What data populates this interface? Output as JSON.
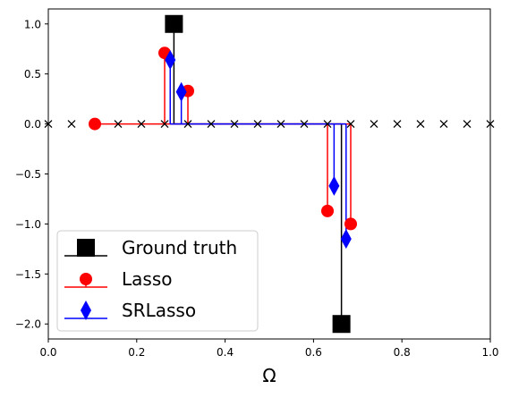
{
  "chart_data": {
    "type": "scatter",
    "xlabel": "Ω",
    "ylabel": "",
    "xlim": [
      0,
      1
    ],
    "ylim": [
      -2.15,
      1.15
    ],
    "xticks": [
      "0.0",
      "0.2",
      "0.4",
      "0.6",
      "0.8",
      "1.0"
    ],
    "xtick_values": [
      0,
      0.2,
      0.4,
      0.6,
      0.8,
      1.0
    ],
    "yticks": [
      "1.0",
      "0.5",
      "0.0",
      "−0.5",
      "−1.0",
      "−1.5",
      "−2.0"
    ],
    "ytick_values": [
      1.0,
      0.5,
      0.0,
      -0.5,
      -1.0,
      -1.5,
      -2.0
    ],
    "grid": false,
    "legend_position": "lower-left",
    "grid_markers": {
      "marker": "x",
      "color": "#000000",
      "x": [
        0.0,
        0.0526,
        0.1053,
        0.1579,
        0.2105,
        0.2632,
        0.3158,
        0.3684,
        0.4211,
        0.4737,
        0.5263,
        0.5789,
        0.6316,
        0.6842,
        0.7368,
        0.7895,
        0.8421,
        0.8947,
        0.9474,
        1.0
      ],
      "y": 0.0
    },
    "series": [
      {
        "name": "Ground truth",
        "marker": "square",
        "color": "#000000",
        "x": [
          0.2842,
          0.6632
        ],
        "y": [
          1.0,
          -2.0
        ]
      },
      {
        "name": "Lasso",
        "marker": "circle",
        "color": "#ff0000",
        "x": [
          0.1053,
          0.2632,
          0.3158,
          0.6316,
          0.6842
        ],
        "y": [
          0.0,
          0.71,
          0.33,
          -0.87,
          -1.0
        ]
      },
      {
        "name": "SRLasso",
        "marker": "diamond",
        "color": "#0000ff",
        "x": [
          0.2758,
          0.3009,
          0.6465,
          0.6737
        ],
        "y": [
          0.64,
          0.32,
          -0.62,
          -1.15
        ]
      }
    ]
  }
}
